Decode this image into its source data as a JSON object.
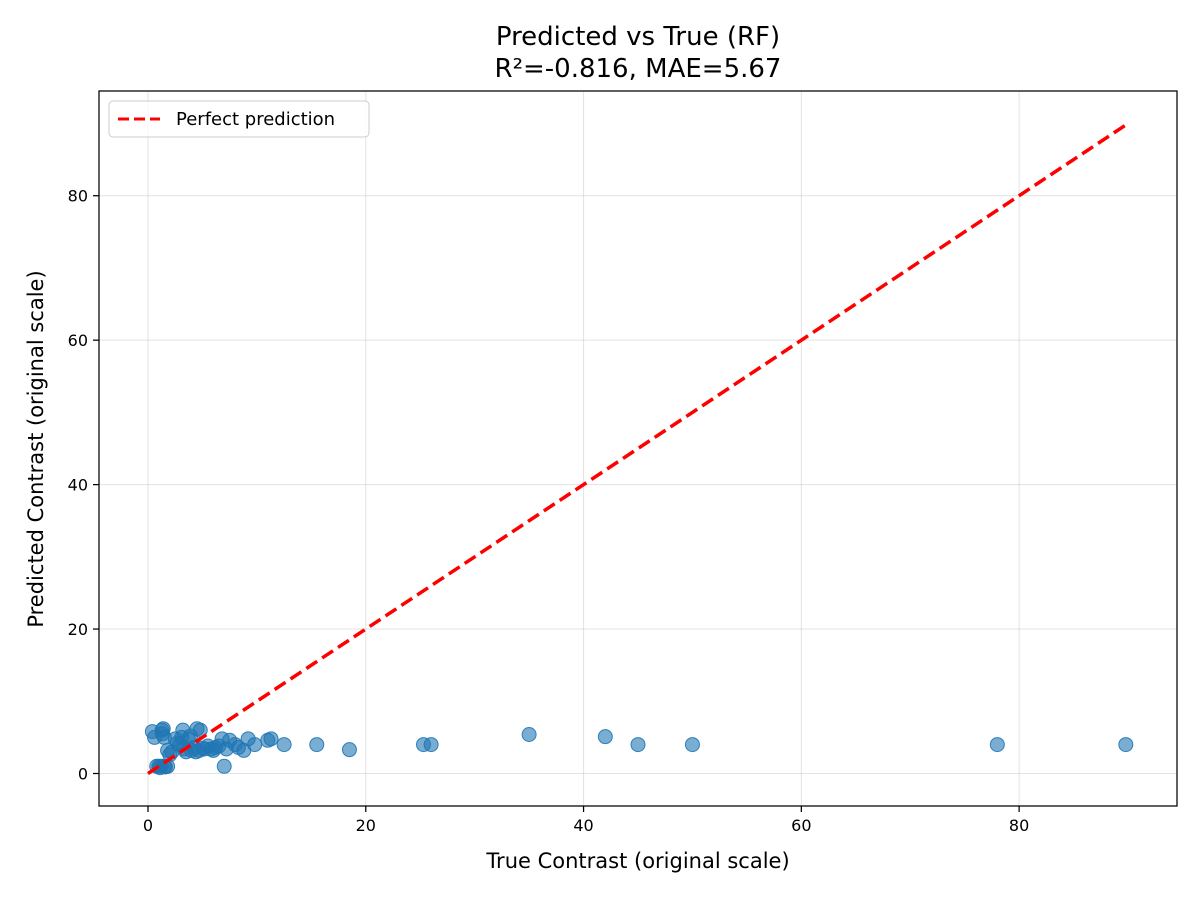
{
  "chart_data": {
    "type": "scatter",
    "title": "Predicted vs True (RF)",
    "subtitle": "R²=-0.816, MAE=5.67",
    "xlabel": "True Contrast (original scale)",
    "ylabel": "Predicted Contrast (original scale)",
    "xlim": [
      -4.5,
      94.5
    ],
    "ylim": [
      -4.5,
      94.5
    ],
    "xticks": [
      0,
      20,
      40,
      60,
      80
    ],
    "yticks": [
      0,
      20,
      40,
      60,
      80
    ],
    "xtick_labels": [
      "0",
      "20",
      "40",
      "60",
      "80"
    ],
    "ytick_labels": [
      "0",
      "20",
      "40",
      "60",
      "80"
    ],
    "grid": true,
    "legend": {
      "position": "top-left",
      "entries": [
        "Perfect prediction"
      ]
    },
    "series": [
      {
        "kind": "points",
        "color": "#1f77b4",
        "opacity": 0.6,
        "points": [
          [
            0.4,
            5.8
          ],
          [
            0.6,
            5.0
          ],
          [
            0.8,
            1.0
          ],
          [
            1.0,
            1.0
          ],
          [
            1.1,
            0.8
          ],
          [
            1.2,
            1.0
          ],
          [
            1.3,
            6.0
          ],
          [
            1.3,
            5.5
          ],
          [
            1.4,
            6.2
          ],
          [
            1.5,
            5.0
          ],
          [
            1.5,
            1.0
          ],
          [
            1.6,
            0.9
          ],
          [
            1.8,
            1.0
          ],
          [
            1.8,
            3.2
          ],
          [
            2.0,
            2.6
          ],
          [
            2.2,
            3.0
          ],
          [
            2.5,
            4.8
          ],
          [
            2.7,
            4.2
          ],
          [
            2.9,
            4.0
          ],
          [
            3.1,
            5.0
          ],
          [
            3.2,
            6.0
          ],
          [
            3.3,
            3.4
          ],
          [
            3.5,
            3.0
          ],
          [
            3.7,
            4.8
          ],
          [
            3.9,
            5.2
          ],
          [
            4.0,
            3.2
          ],
          [
            4.2,
            3.6
          ],
          [
            4.4,
            3.0
          ],
          [
            4.5,
            6.2
          ],
          [
            4.7,
            3.2
          ],
          [
            4.8,
            6.0
          ],
          [
            5.0,
            3.5
          ],
          [
            5.2,
            3.4
          ],
          [
            5.5,
            3.8
          ],
          [
            5.8,
            3.4
          ],
          [
            6.0,
            3.2
          ],
          [
            6.2,
            3.6
          ],
          [
            6.5,
            3.8
          ],
          [
            6.8,
            4.8
          ],
          [
            7.0,
            1.0
          ],
          [
            7.2,
            3.4
          ],
          [
            7.5,
            4.6
          ],
          [
            8.0,
            4.0
          ],
          [
            8.3,
            3.6
          ],
          [
            8.8,
            3.2
          ],
          [
            9.2,
            4.8
          ],
          [
            9.8,
            4.0
          ],
          [
            11.0,
            4.6
          ],
          [
            11.3,
            4.8
          ],
          [
            12.5,
            4.0
          ],
          [
            15.5,
            4.0
          ],
          [
            18.5,
            3.3
          ],
          [
            25.3,
            4.0
          ],
          [
            26.0,
            4.0
          ],
          [
            35.0,
            5.4
          ],
          [
            42.0,
            5.1
          ],
          [
            45.0,
            4.0
          ],
          [
            50.0,
            4.0
          ],
          [
            78.0,
            4.0
          ],
          [
            89.8,
            4.0
          ]
        ]
      },
      {
        "kind": "line",
        "name": "Perfect prediction",
        "color": "#ff0000",
        "style": "dashed",
        "x": [
          0,
          90
        ],
        "y": [
          0,
          90
        ]
      }
    ]
  }
}
